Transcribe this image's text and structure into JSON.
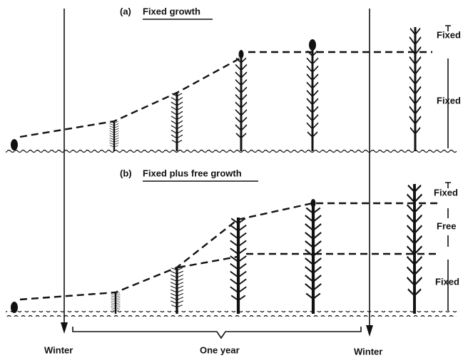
{
  "panel_a": {
    "label": "(a)",
    "title": "Fixed growth",
    "annotations": [
      "Fixed",
      "Fixed"
    ]
  },
  "panel_b": {
    "label": "(b)",
    "title": "Fixed plus free growth",
    "annotations": [
      "Fixed",
      "Free",
      "Fixed"
    ]
  },
  "footer": {
    "left": "Winter",
    "center": "One year",
    "right": "Winter"
  }
}
